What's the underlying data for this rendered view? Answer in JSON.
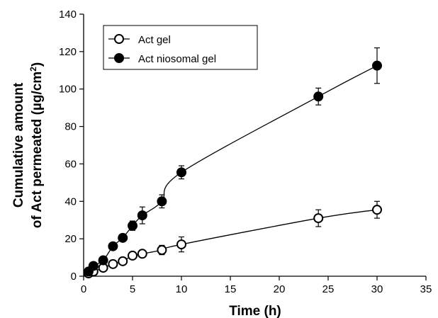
{
  "chart_data": {
    "type": "line",
    "xlabel": "Time (h)",
    "ylabel_line1": "Cumulative amount",
    "ylabel_line2_prefix": "of Act permeated (µg/cm",
    "ylabel_line2_sup": "2",
    "ylabel_line2_suffix": ")",
    "xlim": [
      0,
      35
    ],
    "ylim": [
      0,
      140
    ],
    "xticks": [
      0,
      5,
      10,
      15,
      20,
      25,
      30,
      35
    ],
    "yticks": [
      0,
      20,
      40,
      60,
      80,
      100,
      120,
      140
    ],
    "grid": false,
    "legend_position": "top-left",
    "series": [
      {
        "name": "Act gel",
        "marker": "open-circle",
        "color": "#000000",
        "points": [
          {
            "x": 0.5,
            "y": 1.5,
            "err": 0.5
          },
          {
            "x": 1,
            "y": 2.5,
            "err": 0.8
          },
          {
            "x": 2,
            "y": 4.5,
            "err": 1
          },
          {
            "x": 3,
            "y": 6.5,
            "err": 1
          },
          {
            "x": 4,
            "y": 8,
            "err": 1.2
          },
          {
            "x": 5,
            "y": 11,
            "err": 1.5
          },
          {
            "x": 6,
            "y": 12,
            "err": 1.8
          },
          {
            "x": 8,
            "y": 14,
            "err": 2.5
          },
          {
            "x": 10,
            "y": 17,
            "err": 4
          },
          {
            "x": 24,
            "y": 31,
            "err": 4.5
          },
          {
            "x": 30,
            "y": 35.5,
            "err": 4.5
          }
        ]
      },
      {
        "name": "Act niosomal gel",
        "marker": "filled-circle",
        "color": "#000000",
        "points": [
          {
            "x": 0.5,
            "y": 2.5,
            "err": 0.5
          },
          {
            "x": 1,
            "y": 5.5,
            "err": 0.8
          },
          {
            "x": 2,
            "y": 8.5,
            "err": 1
          },
          {
            "x": 3,
            "y": 16,
            "err": 1.2
          },
          {
            "x": 4,
            "y": 20.5,
            "err": 1.5
          },
          {
            "x": 5,
            "y": 27,
            "err": 2.5
          },
          {
            "x": 6,
            "y": 32.5,
            "err": 4.5
          },
          {
            "x": 8,
            "y": 40,
            "err": 3.5
          },
          {
            "x": 10,
            "y": 55.5,
            "err": 3.5
          },
          {
            "x": 24,
            "y": 96,
            "err": 4.5
          },
          {
            "x": 30,
            "y": 112.5,
            "err": 9.5
          }
        ]
      }
    ]
  }
}
